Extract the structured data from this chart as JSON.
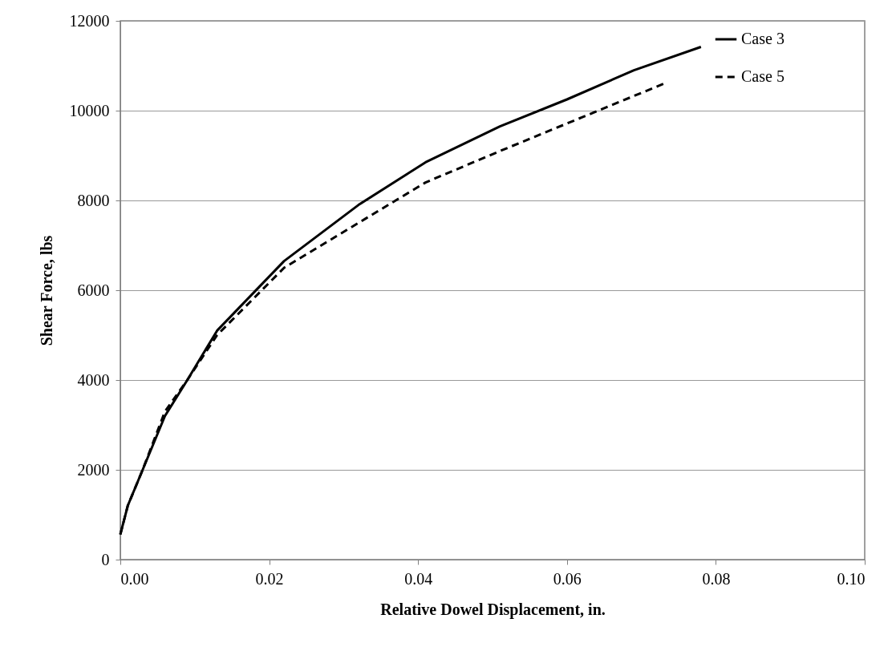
{
  "chart_data": {
    "type": "line",
    "xlabel": "Relative Dowel Displacement, in.",
    "ylabel": "Shear Force, lbs",
    "xlim": [
      0,
      0.1
    ],
    "xticks": [
      {
        "value": 0,
        "label": "0.00"
      },
      0.02,
      0.04,
      0.06,
      0.08,
      {
        "value": 0.1,
        "label": "0.10"
      }
    ],
    "ylim": [
      0,
      12000
    ],
    "yticks": [
      0,
      2000,
      4000,
      6000,
      8000,
      10000,
      12000
    ],
    "grid": "y",
    "legend": "top right",
    "marker": "none",
    "series": [
      {
        "name": "Case 3",
        "color": "#000000",
        "line_style": "solid",
        "x": [
          0,
          0.001,
          0.003,
          0.006,
          0.009,
          0.013,
          0.022,
          0.032,
          0.041,
          0.051,
          0.06,
          0.069,
          0.078
        ],
        "values": [
          560,
          1200,
          2000,
          3200,
          4000,
          5100,
          6650,
          7900,
          8850,
          9650,
          10250,
          10900,
          11420
        ]
      },
      {
        "name": "Case 5",
        "color": "#000000",
        "line_style": "dashed",
        "x": [
          0,
          0.001,
          0.003,
          0.006,
          0.009,
          0.013,
          0.022,
          0.033,
          0.041,
          0.051,
          0.062,
          0.073
        ],
        "values": [
          560,
          1200,
          2000,
          3300,
          4000,
          5000,
          6500,
          7600,
          8400,
          9100,
          9850,
          10600
        ]
      }
    ]
  }
}
